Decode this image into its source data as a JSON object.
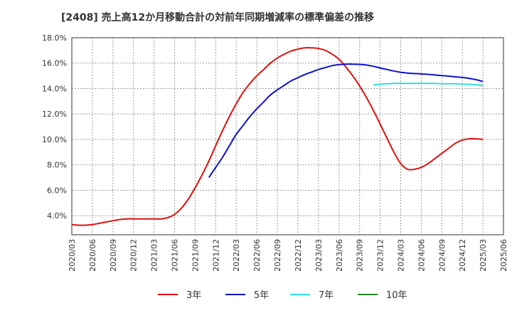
{
  "chart_data": {
    "type": "line",
    "title": "[2408]  売上高12か月移動合計の対前年同期増減率の標準偏差の推移",
    "xlabel": "",
    "ylabel": "",
    "ylim": [
      2.5,
      18.0
    ],
    "yticks": [
      4.0,
      6.0,
      8.0,
      10.0,
      12.0,
      14.0,
      16.0,
      18.0
    ],
    "ytick_labels": [
      "4.0%",
      "6.0%",
      "8.0%",
      "10.0%",
      "12.0%",
      "14.0%",
      "16.0%",
      "18.0%"
    ],
    "x_tick_labels": [
      "2020/03",
      "2020/06",
      "2020/09",
      "2020/12",
      "2021/03",
      "2021/06",
      "2021/09",
      "2021/12",
      "2022/03",
      "2022/06",
      "2022/09",
      "2022/12",
      "2023/03",
      "2023/06",
      "2023/09",
      "2023/12",
      "2024/03",
      "2024/06",
      "2024/09",
      "2024/12",
      "2025/03",
      "2025/06"
    ],
    "grid": true,
    "legend_position": "bottom",
    "series": [
      {
        "name": "3年",
        "color": "#dd1111",
        "points": [
          [
            "2020/03",
            3.3
          ],
          [
            "2020/04",
            3.25
          ],
          [
            "2020/05",
            3.25
          ],
          [
            "2020/06",
            3.3
          ],
          [
            "2020/07",
            3.4
          ],
          [
            "2020/08",
            3.5
          ],
          [
            "2020/09",
            3.6
          ],
          [
            "2020/10",
            3.7
          ],
          [
            "2020/11",
            3.75
          ],
          [
            "2020/12",
            3.75
          ],
          [
            "2021/01",
            3.75
          ],
          [
            "2021/02",
            3.75
          ],
          [
            "2021/03",
            3.75
          ],
          [
            "2021/04",
            3.75
          ],
          [
            "2021/05",
            3.85
          ],
          [
            "2021/06",
            4.1
          ],
          [
            "2021/07",
            4.6
          ],
          [
            "2021/08",
            5.3
          ],
          [
            "2021/09",
            6.2
          ],
          [
            "2021/10",
            7.2
          ],
          [
            "2021/11",
            8.3
          ],
          [
            "2021/12",
            9.5
          ],
          [
            "2022/01",
            10.7
          ],
          [
            "2022/02",
            11.8
          ],
          [
            "2022/03",
            12.8
          ],
          [
            "2022/04",
            13.7
          ],
          [
            "2022/05",
            14.4
          ],
          [
            "2022/06",
            15.0
          ],
          [
            "2022/07",
            15.5
          ],
          [
            "2022/08",
            16.0
          ],
          [
            "2022/09",
            16.4
          ],
          [
            "2022/10",
            16.7
          ],
          [
            "2022/11",
            16.95
          ],
          [
            "2022/12",
            17.1
          ],
          [
            "2023/01",
            17.2
          ],
          [
            "2023/02",
            17.2
          ],
          [
            "2023/03",
            17.15
          ],
          [
            "2023/04",
            17.0
          ],
          [
            "2023/05",
            16.7
          ],
          [
            "2023/06",
            16.3
          ],
          [
            "2023/07",
            15.7
          ],
          [
            "2023/08",
            15.0
          ],
          [
            "2023/09",
            14.2
          ],
          [
            "2023/10",
            13.3
          ],
          [
            "2023/11",
            12.3
          ],
          [
            "2023/12",
            11.2
          ],
          [
            "2024/01",
            10.1
          ],
          [
            "2024/02",
            9.0
          ],
          [
            "2024/03",
            8.1
          ],
          [
            "2024/04",
            7.65
          ],
          [
            "2024/05",
            7.65
          ],
          [
            "2024/06",
            7.8
          ],
          [
            "2024/07",
            8.1
          ],
          [
            "2024/08",
            8.5
          ],
          [
            "2024/09",
            8.9
          ],
          [
            "2024/10",
            9.3
          ],
          [
            "2024/11",
            9.7
          ],
          [
            "2024/12",
            9.95
          ],
          [
            "2025/01",
            10.05
          ],
          [
            "2025/02",
            10.05
          ],
          [
            "2025/03",
            10.0
          ]
        ]
      },
      {
        "name": "5年",
        "color": "#1111cc",
        "points": [
          [
            "2021/11",
            7.0
          ],
          [
            "2021/12",
            7.8
          ],
          [
            "2022/01",
            8.6
          ],
          [
            "2022/02",
            9.5
          ],
          [
            "2022/03",
            10.4
          ],
          [
            "2022/04",
            11.1
          ],
          [
            "2022/05",
            11.8
          ],
          [
            "2022/06",
            12.4
          ],
          [
            "2022/07",
            12.95
          ],
          [
            "2022/08",
            13.5
          ],
          [
            "2022/09",
            13.9
          ],
          [
            "2022/10",
            14.25
          ],
          [
            "2022/11",
            14.6
          ],
          [
            "2022/12",
            14.85
          ],
          [
            "2023/01",
            15.1
          ],
          [
            "2023/02",
            15.3
          ],
          [
            "2023/03",
            15.5
          ],
          [
            "2023/04",
            15.65
          ],
          [
            "2023/05",
            15.8
          ],
          [
            "2023/06",
            15.88
          ],
          [
            "2023/07",
            15.92
          ],
          [
            "2023/08",
            15.92
          ],
          [
            "2023/09",
            15.9
          ],
          [
            "2023/10",
            15.85
          ],
          [
            "2023/11",
            15.75
          ],
          [
            "2023/12",
            15.62
          ],
          [
            "2024/01",
            15.5
          ],
          [
            "2024/02",
            15.38
          ],
          [
            "2024/03",
            15.28
          ],
          [
            "2024/04",
            15.22
          ],
          [
            "2024/05",
            15.18
          ],
          [
            "2024/06",
            15.15
          ],
          [
            "2024/07",
            15.12
          ],
          [
            "2024/08",
            15.07
          ],
          [
            "2024/09",
            15.02
          ],
          [
            "2024/10",
            14.97
          ],
          [
            "2024/11",
            14.92
          ],
          [
            "2024/12",
            14.87
          ],
          [
            "2025/01",
            14.8
          ],
          [
            "2025/02",
            14.7
          ],
          [
            "2025/03",
            14.55
          ]
        ]
      },
      {
        "name": "7年",
        "color": "#33dddd",
        "points": [
          [
            "2023/11",
            14.28
          ],
          [
            "2023/12",
            14.35
          ],
          [
            "2024/01",
            14.38
          ],
          [
            "2024/02",
            14.4
          ],
          [
            "2024/03",
            14.4
          ],
          [
            "2024/04",
            14.4
          ],
          [
            "2024/05",
            14.4
          ],
          [
            "2024/06",
            14.4
          ],
          [
            "2024/07",
            14.4
          ],
          [
            "2024/08",
            14.4
          ],
          [
            "2024/09",
            14.38
          ],
          [
            "2024/10",
            14.38
          ],
          [
            "2024/11",
            14.38
          ],
          [
            "2024/12",
            14.35
          ],
          [
            "2025/01",
            14.33
          ],
          [
            "2025/02",
            14.3
          ],
          [
            "2025/03",
            14.25
          ]
        ]
      },
      {
        "name": "10年",
        "color": "#228822",
        "points": []
      }
    ]
  }
}
